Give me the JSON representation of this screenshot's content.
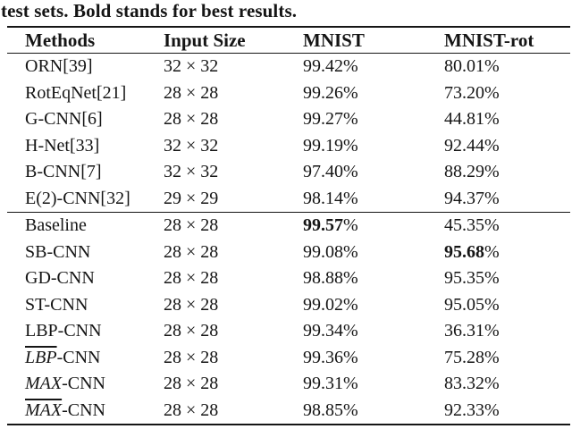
{
  "caption": "test sets. Bold stands for best results.",
  "table": {
    "headers": [
      "Methods",
      "Input Size",
      "MNIST",
      "MNIST-rot"
    ],
    "rows": [
      {
        "method": "ORN[39]",
        "input": "32 × 32",
        "mnist": "99.42%",
        "rot": "80.01%"
      },
      {
        "method": "RotEqNet[21]",
        "input": "28 × 28",
        "mnist": "99.26%",
        "rot": "73.20%"
      },
      {
        "method": "G-CNN[6]",
        "input": "28 × 28",
        "mnist": "99.27%",
        "rot": "44.81%"
      },
      {
        "method": "H-Net[33]",
        "input": "32 × 32",
        "mnist": "99.19%",
        "rot": "92.44%"
      },
      {
        "method": "B-CNN[7]",
        "input": "32 × 32",
        "mnist": "97.40%",
        "rot": "88.29%"
      },
      {
        "method": "E(2)-CNN[32]",
        "input": "29 × 29",
        "mnist": "98.14%",
        "rot": "94.37%"
      },
      {
        "method": "Baseline",
        "input": "28 × 28",
        "mnist_num": "99.57",
        "mnist_unit": "%",
        "rot": "45.35%"
      },
      {
        "method": "SB-CNN",
        "input": "28 × 28",
        "mnist": "99.08%",
        "rot_num": "95.68",
        "rot_unit": "%"
      },
      {
        "method": "GD-CNN",
        "input": "28 × 28",
        "mnist": "98.88%",
        "rot": "95.35%"
      },
      {
        "method": "ST-CNN",
        "input": "28 × 28",
        "mnist": "99.02%",
        "rot": "95.05%"
      },
      {
        "method": "LBP-CNN",
        "input": "28 × 28",
        "mnist": "99.34%",
        "rot": "36.31%"
      },
      {
        "method_prefix": "LBP",
        "method_suffix": "-CNN",
        "input": "28 × 28",
        "mnist": "99.36%",
        "rot": "75.28%"
      },
      {
        "method_prefix": "MAX",
        "method_suffix": "-CNN",
        "input": "28 × 28",
        "mnist": "99.31%",
        "rot": "83.32%"
      },
      {
        "method_prefix": "MAX",
        "method_suffix": "-CNN",
        "input": "28 × 28",
        "mnist": "98.85%",
        "rot": "92.33%"
      }
    ]
  }
}
